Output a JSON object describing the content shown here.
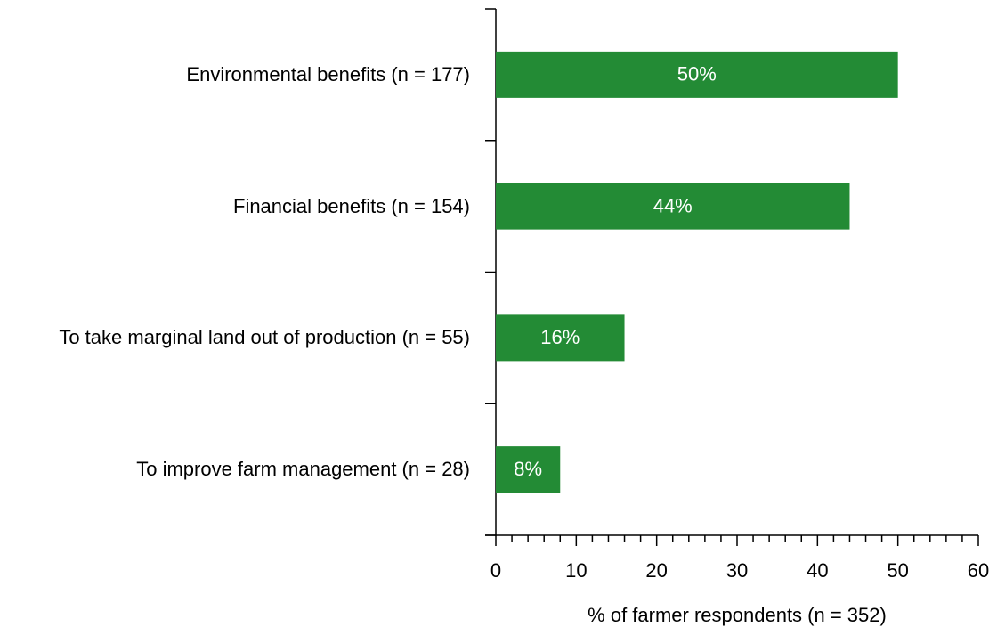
{
  "chart_data": {
    "type": "bar",
    "orientation": "horizontal",
    "categories": [
      "Environmental benefits (n = 177)",
      "Financial benefits (n = 154)",
      "To take marginal land out of production (n = 55)",
      "To improve farm management (n = 28)"
    ],
    "values": [
      50,
      44,
      16,
      8
    ],
    "value_labels": [
      "50%",
      "44%",
      "16%",
      "8%"
    ],
    "color": "#238b35",
    "x_label": "% of farmer respondents (n = 352)",
    "xlim": [
      0,
      60
    ],
    "xticks": [
      0,
      10,
      20,
      30,
      40,
      50,
      60
    ]
  }
}
